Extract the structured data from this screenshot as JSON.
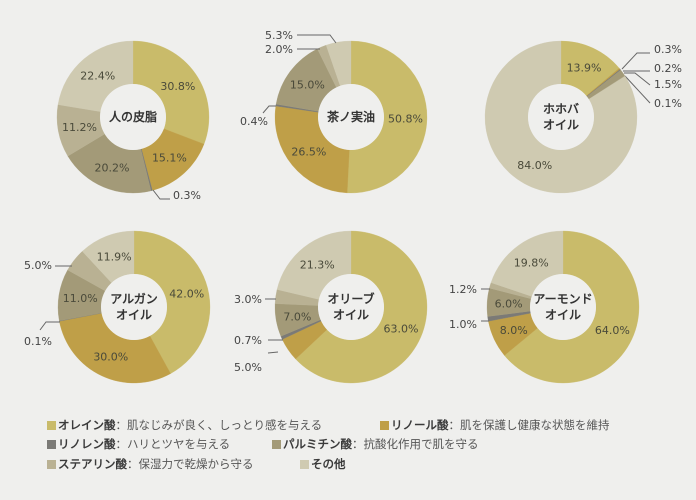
{
  "chart_data": {
    "type": "donut",
    "series": [
      {
        "name": "オレイン酸",
        "description": "：肌なじみが良く、しっとり感を与える",
        "color": "#c9bb6a"
      },
      {
        "name": "リノール酸",
        "description": "：肌を保護し健康な状態を維持",
        "color": "#bf9f48"
      },
      {
        "name": "リノレン酸",
        "description": "：ハリとツヤを与える",
        "color": "#7b7a76"
      },
      {
        "name": "パルミチン酸",
        "description": "：抗酸化作用で肌を守る",
        "color": "#a39a78"
      },
      {
        "name": "ステアリン酸",
        "description": "：保湿力で乾燥から守る",
        "color": "#b9b193"
      },
      {
        "name": "その他",
        "description": "",
        "color": "#cfcab1"
      }
    ],
    "charts": [
      {
        "title": "人の皮脂",
        "values": [
          30.8,
          15.1,
          0.3,
          20.2,
          11.2,
          22.4
        ],
        "labels": [
          "30.8%",
          "15.1%",
          "0.3%",
          "20.2%",
          "11.2%",
          "22.4%"
        ]
      },
      {
        "title": "茶ノ実油",
        "values": [
          50.8,
          26.5,
          0.4,
          15.0,
          2.0,
          5.3
        ],
        "labels": [
          "50.8%",
          "26.5%",
          "0.4%",
          "15.0%",
          "2.0%",
          "5.3%"
        ]
      },
      {
        "title": "ホホバ\nオイル",
        "values": [
          13.9,
          0.3,
          0.2,
          1.5,
          0.1,
          84.0
        ],
        "labels": [
          "13.9%",
          "0.3%",
          "0.2%",
          "1.5%",
          "0.1%",
          "84.0%"
        ]
      },
      {
        "title": "アルガン\nオイル",
        "values": [
          42.0,
          30.0,
          0.1,
          11.0,
          5.0,
          11.9
        ],
        "labels": [
          "42.0%",
          "30.0%",
          "0.1%",
          "11.0%",
          "5.0%",
          "11.9%"
        ]
      },
      {
        "title": "オリーブ\nオイル",
        "values": [
          63.0,
          5.0,
          0.7,
          7.0,
          3.0,
          21.3
        ],
        "labels": [
          "63.0%",
          "5.0%",
          "0.7%",
          "7.0%",
          "3.0%",
          "21.3%"
        ]
      },
      {
        "title": "アーモンド\nオイル",
        "values": [
          64.0,
          8.0,
          1.0,
          6.0,
          1.2,
          19.8
        ],
        "labels": [
          "64.0%",
          "8.0%",
          "1.0%",
          "6.0%",
          "1.2%",
          "19.8%"
        ]
      }
    ],
    "legend": "bottom"
  }
}
